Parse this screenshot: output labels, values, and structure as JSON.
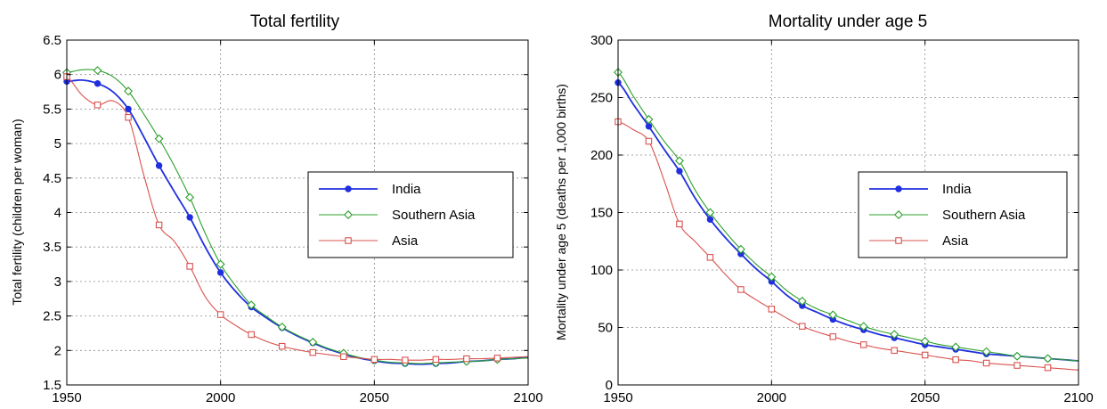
{
  "chart_data": [
    {
      "type": "line",
      "title": "Total fertility",
      "xlabel": "",
      "ylabel": "Total fertility (children per woman)",
      "xlim": [
        1950,
        2100
      ],
      "ylim": [
        1.5,
        6.5
      ],
      "xticks": [
        1950,
        2000,
        2050,
        2100
      ],
      "yticks": [
        1.5,
        2,
        2.5,
        3,
        3.5,
        4,
        4.5,
        5,
        5.5,
        6,
        6.5
      ],
      "ytick_labels": [
        "1.5",
        "2",
        "2.5",
        "3",
        "3.5",
        "4",
        "4.5",
        "5",
        "5.5",
        "6",
        "6.5"
      ],
      "grid": "dashed",
      "legend": "right",
      "series": [
        {
          "name": "India",
          "color": "#1f2fe0",
          "marker": "filled-circle",
          "line_width": 2,
          "x": [
            1950,
            1955,
            1960,
            1965,
            1970,
            1975,
            1980,
            1985,
            1990,
            1995,
            2000,
            2005,
            2010,
            2015,
            2020,
            2025,
            2030,
            2035,
            2040,
            2045,
            2050,
            2055,
            2060,
            2065,
            2070,
            2075,
            2080,
            2085,
            2090,
            2095,
            2100
          ],
          "y": [
            5.9,
            5.92,
            5.87,
            5.75,
            5.5,
            5.1,
            4.68,
            4.3,
            3.93,
            3.5,
            3.13,
            2.85,
            2.63,
            2.47,
            2.33,
            2.21,
            2.11,
            2.02,
            1.95,
            1.89,
            1.85,
            1.82,
            1.81,
            1.8,
            1.81,
            1.82,
            1.84,
            1.85,
            1.87,
            1.88,
            1.9
          ],
          "marker_x": [
            1950,
            1960,
            1970,
            1980,
            1990,
            2000,
            2010,
            2020,
            2030,
            2040,
            2050,
            2060,
            2070,
            2080,
            2090
          ]
        },
        {
          "name": "Southern Asia",
          "color": "#2ca02c",
          "marker": "open-diamond",
          "line_width": 1,
          "x": [
            1950,
            1955,
            1960,
            1965,
            1970,
            1975,
            1980,
            1985,
            1990,
            1995,
            2000,
            2005,
            2010,
            2015,
            2020,
            2025,
            2030,
            2035,
            2040,
            2045,
            2050,
            2055,
            2060,
            2065,
            2070,
            2075,
            2080,
            2085,
            2090,
            2095,
            2100
          ],
          "y": [
            6.03,
            6.07,
            6.06,
            5.97,
            5.76,
            5.43,
            5.07,
            4.67,
            4.22,
            3.7,
            3.25,
            2.93,
            2.66,
            2.49,
            2.34,
            2.22,
            2.12,
            2.03,
            1.96,
            1.9,
            1.86,
            1.83,
            1.82,
            1.81,
            1.82,
            1.83,
            1.84,
            1.85,
            1.87,
            1.88,
            1.89
          ],
          "marker_x": [
            1950,
            1960,
            1970,
            1980,
            1990,
            2000,
            2010,
            2020,
            2030,
            2040,
            2050,
            2060,
            2070,
            2080,
            2090
          ]
        },
        {
          "name": "Asia",
          "color": "#d9534f",
          "marker": "open-square",
          "line_width": 1,
          "x": [
            1950,
            1955,
            1960,
            1965,
            1970,
            1975,
            1980,
            1985,
            1990,
            1995,
            2000,
            2005,
            2010,
            2015,
            2020,
            2025,
            2030,
            2035,
            2040,
            2045,
            2050,
            2055,
            2060,
            2065,
            2070,
            2075,
            2080,
            2085,
            2090,
            2095,
            2100
          ],
          "y": [
            5.97,
            5.7,
            5.56,
            5.62,
            5.38,
            4.55,
            3.82,
            3.58,
            3.22,
            2.78,
            2.52,
            2.36,
            2.23,
            2.13,
            2.06,
            2.01,
            1.97,
            1.94,
            1.91,
            1.89,
            1.87,
            1.87,
            1.86,
            1.86,
            1.87,
            1.87,
            1.88,
            1.88,
            1.89,
            1.9,
            1.91
          ],
          "marker_x": [
            1950,
            1960,
            1970,
            1980,
            1990,
            2000,
            2010,
            2020,
            2030,
            2040,
            2050,
            2060,
            2070,
            2080,
            2090
          ]
        }
      ]
    },
    {
      "type": "line",
      "title": "Mortality under age 5",
      "xlabel": "",
      "ylabel": "Mortality under age 5 (deaths per 1,000 births)",
      "xlim": [
        1950,
        2100
      ],
      "ylim": [
        0,
        300
      ],
      "xticks": [
        1950,
        2000,
        2050,
        2100
      ],
      "yticks": [
        0,
        50,
        100,
        150,
        200,
        250,
        300
      ],
      "ytick_labels": [
        "0",
        "50",
        "100",
        "150",
        "200",
        "250",
        "300"
      ],
      "grid": "dashed",
      "legend": "right",
      "series": [
        {
          "name": "India",
          "color": "#1f2fe0",
          "marker": "filled-circle",
          "line_width": 2,
          "x": [
            1950,
            1955,
            1960,
            1965,
            1970,
            1975,
            1980,
            1985,
            1990,
            1995,
            2000,
            2005,
            2010,
            2015,
            2020,
            2025,
            2030,
            2035,
            2040,
            2045,
            2050,
            2055,
            2060,
            2065,
            2070,
            2075,
            2080,
            2085,
            2090,
            2095,
            2100
          ],
          "y": [
            263,
            244,
            225,
            205,
            186,
            163,
            144,
            128,
            114,
            101,
            90,
            78,
            69,
            63,
            57,
            52,
            48,
            44,
            41,
            38,
            35,
            33,
            31,
            29,
            27,
            26,
            25,
            24,
            23,
            22,
            21
          ],
          "marker_x": [
            1950,
            1960,
            1970,
            1980,
            1990,
            2000,
            2010,
            2020,
            2030,
            2040,
            2050,
            2060,
            2070,
            2080,
            2090
          ]
        },
        {
          "name": "Southern Asia",
          "color": "#2ca02c",
          "marker": "open-diamond",
          "line_width": 1,
          "x": [
            1950,
            1955,
            1960,
            1965,
            1970,
            1975,
            1980,
            1985,
            1990,
            1995,
            2000,
            2005,
            2010,
            2015,
            2020,
            2025,
            2030,
            2035,
            2040,
            2045,
            2050,
            2055,
            2060,
            2065,
            2070,
            2075,
            2080,
            2085,
            2090,
            2095,
            2100
          ],
          "y": [
            272,
            251,
            231,
            212,
            195,
            170,
            150,
            133,
            118,
            105,
            94,
            82,
            73,
            66,
            61,
            56,
            51,
            47,
            44,
            41,
            38,
            35,
            33,
            31,
            29,
            27,
            25,
            24,
            23,
            22,
            21
          ],
          "marker_x": [
            1950,
            1960,
            1970,
            1980,
            1990,
            2000,
            2010,
            2020,
            2030,
            2040,
            2050,
            2060,
            2070,
            2080,
            2090
          ]
        },
        {
          "name": "Asia",
          "color": "#d9534f",
          "marker": "open-square",
          "line_width": 1,
          "x": [
            1950,
            1955,
            1960,
            1965,
            1970,
            1975,
            1980,
            1985,
            1990,
            1995,
            2000,
            2005,
            2010,
            2015,
            2020,
            2025,
            2030,
            2035,
            2040,
            2045,
            2050,
            2055,
            2060,
            2065,
            2070,
            2075,
            2080,
            2085,
            2090,
            2095,
            2100
          ],
          "y": [
            229,
            222,
            212,
            178,
            140,
            125,
            111,
            96,
            83,
            74,
            66,
            58,
            51,
            46,
            42,
            38,
            35,
            32,
            30,
            28,
            26,
            24,
            22,
            21,
            19,
            18,
            17,
            16,
            15,
            14,
            13
          ],
          "marker_x": [
            1950,
            1960,
            1970,
            1980,
            1990,
            2000,
            2010,
            2020,
            2030,
            2040,
            2050,
            2060,
            2070,
            2080,
            2090
          ]
        }
      ]
    }
  ]
}
